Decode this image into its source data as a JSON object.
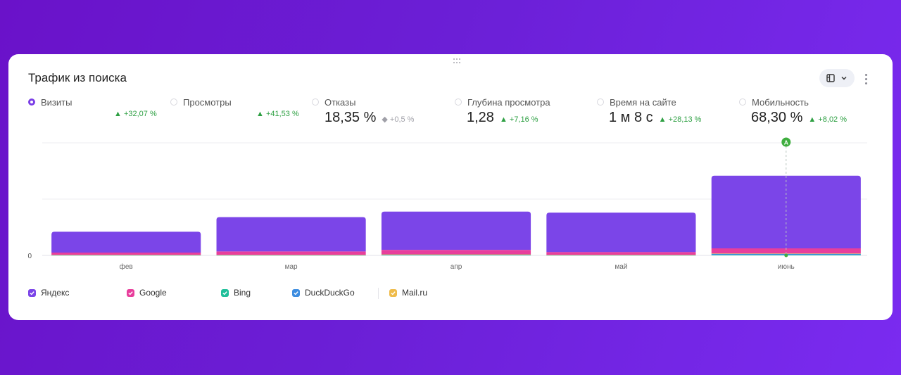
{
  "card": {
    "title": "Трафик из поиска"
  },
  "metrics": [
    {
      "label": "Визиты",
      "value": "",
      "delta": "+32,07 %",
      "trend": "up",
      "selected": true
    },
    {
      "label": "Просмотры",
      "value": "",
      "delta": "+41,53 %",
      "trend": "up",
      "selected": false
    },
    {
      "label": "Отказы",
      "value": "18,35 %",
      "delta": "+0,5 %",
      "trend": "neutral",
      "selected": false
    },
    {
      "label": "Глубина просмотра",
      "value": "1,28",
      "delta": "+7,16 %",
      "trend": "up",
      "selected": false
    },
    {
      "label": "Время на сайте",
      "value": "1 м 8 с",
      "delta": "+28,13 %",
      "trend": "up",
      "selected": false
    },
    {
      "label": "Мобильность",
      "value": "68,30 %",
      "delta": "+8,02 %",
      "trend": "up",
      "selected": false
    }
  ],
  "chart_data": {
    "type": "bar",
    "stacked": true,
    "categories": [
      "фев",
      "мар",
      "апр",
      "май",
      "июнь"
    ],
    "y_tick_labels": [
      "0"
    ],
    "ylim": [
      0,
      2
    ],
    "grid": true,
    "legend_placement": "bottom-left",
    "annotation": {
      "label": "A",
      "category": "июнь"
    },
    "series": [
      {
        "name": "Bing",
        "values": [
          0.005,
          0.005,
          0.01,
          0.005,
          0.01
        ]
      },
      {
        "name": "DuckDuckGo",
        "values": [
          0.003,
          0.003,
          0.005,
          0.003,
          0.02
        ]
      },
      {
        "name": "Mail.ru",
        "values": [
          0.002,
          0.002,
          0.003,
          0.002,
          0.005
        ]
      },
      {
        "name": "Google",
        "values": [
          0.04,
          0.06,
          0.08,
          0.05,
          0.09
        ]
      },
      {
        "name": "Яндекс",
        "values": [
          0.37,
          0.61,
          0.68,
          0.7,
          1.29
        ]
      }
    ]
  },
  "legend": [
    {
      "name": "Яндекс",
      "color": "#7b45e8"
    },
    {
      "name": "Google",
      "color": "#e83e9c"
    },
    {
      "name": "Bing",
      "color": "#1fbf9a"
    },
    {
      "name": "DuckDuckGo",
      "color": "#3d8de0"
    },
    {
      "name": "Mail.ru",
      "color": "#efbb4a"
    }
  ],
  "colors": {
    "Яндекс": "#7b45e8",
    "Google": "#e83e9c",
    "Bing": "#1fbf9a",
    "DuckDuckGo": "#3d8de0",
    "Mail.ru": "#efbb4a",
    "annotation": "#3fae3f",
    "accent": "#7a3ee6",
    "positive": "#2ea043"
  },
  "icons": {
    "view_toggle": "table-chart-icon",
    "view_chevron": "chevron-down-icon",
    "more": "more-vertical-icon",
    "drag": "drag-handle-icon"
  }
}
